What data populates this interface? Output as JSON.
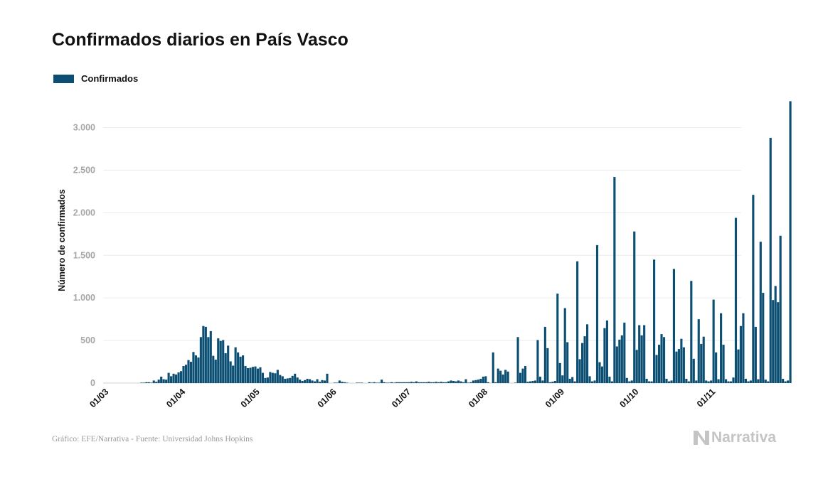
{
  "title": "Confirmados diarios en País Vasco",
  "legend": {
    "label": "Confirmados",
    "color": "#0c4f73"
  },
  "footer": {
    "source": "Gráfico: EFE/Narrativa - Fuente: Universidad Johns Hopkins"
  },
  "logo": {
    "text": "Narrativa"
  },
  "chart_data": {
    "type": "bar",
    "title": "Confirmados diarios en País Vasco",
    "ylabel": "Número de confirmados",
    "xlabel": "",
    "ylim": [
      0,
      3330
    ],
    "yticks": [
      0,
      500,
      1000,
      1500,
      2000,
      2500,
      3000
    ],
    "ytick_labels": [
      "0",
      "500",
      "1.000",
      "1.500",
      "2.000",
      "2.500",
      "3.000"
    ],
    "xticks": [
      {
        "label": "01/03",
        "day": 0
      },
      {
        "label": "01/04",
        "day": 31
      },
      {
        "label": "01/05",
        "day": 61
      },
      {
        "label": "01/06",
        "day": 92
      },
      {
        "label": "01/07",
        "day": 122
      },
      {
        "label": "01/08",
        "day": 153
      },
      {
        "label": "01/09",
        "day": 184
      },
      {
        "label": "01/10",
        "day": 214
      },
      {
        "label": "01/11",
        "day": 245
      }
    ],
    "grid": true,
    "legend_position": "top-left",
    "series": [
      {
        "name": "Confirmados",
        "color": "#0c4f73",
        "values": [
          0,
          0,
          0,
          0,
          0,
          0,
          0,
          0,
          0,
          0,
          0,
          0,
          0,
          0,
          5,
          5,
          10,
          10,
          5,
          30,
          15,
          40,
          75,
          45,
          40,
          120,
          80,
          110,
          100,
          125,
          140,
          200,
          215,
          270,
          250,
          365,
          325,
          300,
          540,
          670,
          660,
          540,
          610,
          320,
          275,
          525,
          495,
          505,
          350,
          440,
          255,
          205,
          420,
          360,
          310,
          325,
          200,
          175,
          180,
          190,
          195,
          170,
          185,
          120,
          60,
          65,
          130,
          120,
          115,
          155,
          95,
          80,
          50,
          55,
          60,
          85,
          110,
          65,
          40,
          25,
          35,
          50,
          45,
          30,
          20,
          45,
          15,
          35,
          30,
          110,
          0,
          0,
          5,
          5,
          30,
          15,
          10,
          5,
          0,
          0,
          0,
          5,
          5,
          5,
          0,
          0,
          10,
          5,
          10,
          5,
          5,
          40,
          10,
          5,
          5,
          10,
          5,
          10,
          10,
          10,
          10,
          10,
          10,
          15,
          10,
          20,
          10,
          10,
          10,
          10,
          15,
          10,
          10,
          15,
          10,
          15,
          10,
          10,
          20,
          30,
          25,
          20,
          30,
          20,
          10,
          45,
          5,
          10,
          30,
          35,
          40,
          50,
          75,
          80,
          10,
          0,
          360,
          10,
          170,
          145,
          100,
          155,
          135,
          0,
          0,
          5,
          540,
          120,
          170,
          200,
          15,
          20,
          25,
          30,
          505,
          75,
          30,
          660,
          410,
          10,
          15,
          25,
          1050,
          235,
          90,
          880,
          480,
          50,
          70,
          20,
          1430,
          280,
          470,
          550,
          690,
          80,
          20,
          30,
          1620,
          245,
          195,
          645,
          735,
          75,
          20,
          2420,
          430,
          510,
          560,
          710,
          60,
          20,
          30,
          1780,
          390,
          680,
          560,
          680,
          50,
          20,
          20,
          1450,
          330,
          450,
          575,
          540,
          50,
          20,
          30,
          1340,
          370,
          400,
          520,
          420,
          50,
          20,
          1200,
          285,
          30,
          750,
          460,
          545,
          30,
          20,
          30,
          980,
          360,
          45,
          820,
          450,
          45,
          20,
          20,
          65,
          1940,
          395,
          670,
          820,
          50,
          20,
          30,
          2210,
          660,
          45,
          1660,
          1060,
          40,
          20,
          2880,
          975,
          1140,
          950,
          1730,
          50,
          20,
          30,
          3310
        ]
      }
    ]
  }
}
